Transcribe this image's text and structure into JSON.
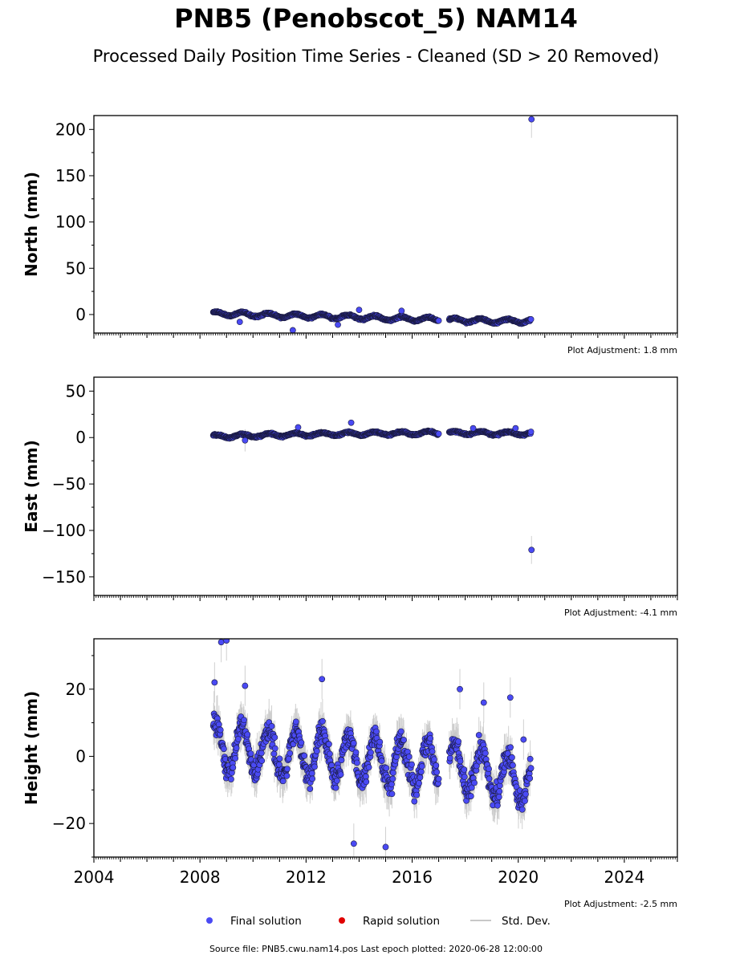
{
  "title": "PNB5 (Penobscot_5) NAM14",
  "subtitle": "Processed Daily Position Time Series - Cleaned (SD > 20 Removed)",
  "source": "Source file: PNB5.cwu.nam14.pos  Last epoch plotted: 2020-06-28 12:00:00",
  "colors": {
    "final": "#4a4af4",
    "rapid": "#e00000",
    "stddev": "#c8c8c8",
    "edge": "#1a1a40"
  },
  "legend": {
    "final": "Final solution",
    "rapid": "Rapid solution",
    "stddev": "Std. Dev."
  },
  "chart_data": [
    {
      "type": "scatter",
      "ylabel": "North (mm)",
      "xlim": [
        2004.0,
        2026.0
      ],
      "ylim": [
        -20,
        215
      ],
      "yticks": [
        0,
        50,
        100,
        150,
        200
      ],
      "ytick_labels": [
        "0",
        "50",
        "100",
        "150",
        "200"
      ],
      "adjustment": "Plot Adjustment: 1.8 mm",
      "x_ticks_labeled": false,
      "segments": [
        {
          "x": [
            2008.5,
            2008.9,
            2009.4,
            2009.9,
            2010.5,
            2011.0,
            2011.5,
            2012.0,
            2012.5,
            2013.0,
            2013.5,
            2014.0,
            2014.5,
            2015.0,
            2015.5,
            2016.0,
            2016.5,
            2017.0
          ],
          "y": [
            0.5,
            1.0,
            0.5,
            0.0,
            -0.5,
            -1.0,
            -1.5,
            -1.5,
            -2.0,
            -2.5,
            -2.5,
            -3.0,
            -3.5,
            -4.0,
            -4.5,
            -4.5,
            -5.0,
            -5.5
          ],
          "amplitude": 2.5,
          "noise": 1.0,
          "error": 2.5
        },
        {
          "x": [
            2017.4,
            2018.0,
            2018.5,
            2019.0,
            2019.5,
            2020.0,
            2020.48
          ],
          "y": [
            -6.0,
            -6.0,
            -6.5,
            -7.0,
            -7.0,
            -7.0,
            -7.0
          ],
          "amplitude": 2.5,
          "noise": 1.0,
          "error": 2.5
        }
      ],
      "outliers": [
        {
          "x": 2009.5,
          "y": -8,
          "err": 3
        },
        {
          "x": 2011.5,
          "y": -17,
          "err": 4
        },
        {
          "x": 2013.2,
          "y": -11,
          "err": 3
        },
        {
          "x": 2014.0,
          "y": 5,
          "err": 3
        },
        {
          "x": 2015.6,
          "y": 4,
          "err": 3
        },
        {
          "x": 2020.5,
          "y": 211,
          "err": 20
        }
      ]
    },
    {
      "type": "scatter",
      "ylabel": "East (mm)",
      "xlim": [
        2004.0,
        2026.0
      ],
      "ylim": [
        -170,
        65
      ],
      "yticks": [
        -150,
        -100,
        -50,
        0,
        50
      ],
      "ytick_labels": [
        "−150",
        "−100",
        "−50",
        "0",
        "50"
      ],
      "adjustment": "Plot Adjustment: -4.1 mm",
      "x_ticks_labeled": false,
      "segments": [
        {
          "x": [
            2008.5,
            2009.0,
            2009.5,
            2010.0,
            2010.5,
            2011.0,
            2011.5,
            2012.0,
            2012.5,
            2013.0,
            2013.5,
            2014.0,
            2014.5,
            2015.0,
            2015.5,
            2016.0,
            2016.5,
            2017.0
          ],
          "y": [
            1.5,
            1.5,
            2.0,
            2.0,
            2.5,
            3.0,
            3.0,
            3.5,
            3.5,
            4.0,
            4.0,
            4.0,
            4.5,
            4.5,
            4.5,
            4.5,
            5.0,
            5.0
          ],
          "amplitude": 2.0,
          "noise": 1.0,
          "error": 3.0
        },
        {
          "x": [
            2017.4,
            2018.0,
            2018.5,
            2019.0,
            2019.5,
            2020.0,
            2020.48
          ],
          "y": [
            5.0,
            5.0,
            5.0,
            4.5,
            4.5,
            4.5,
            4.0
          ],
          "amplitude": 2.0,
          "noise": 1.0,
          "error": 3.0
        }
      ],
      "outliers": [
        {
          "x": 2009.7,
          "y": -3,
          "err": 12
        },
        {
          "x": 2011.7,
          "y": 11,
          "err": 3
        },
        {
          "x": 2013.7,
          "y": 16,
          "err": 3
        },
        {
          "x": 2018.3,
          "y": 10,
          "err": 3
        },
        {
          "x": 2019.9,
          "y": 10,
          "err": 3
        },
        {
          "x": 2020.5,
          "y": -121,
          "err": 15
        }
      ]
    },
    {
      "type": "scatter",
      "ylabel": "Height (mm)",
      "xlim": [
        2004.0,
        2026.0
      ],
      "ylim": [
        -30,
        35
      ],
      "yticks": [
        -20,
        0,
        20
      ],
      "ytick_labels": [
        "−20",
        "0",
        "20"
      ],
      "adjustment": "Plot Adjustment: -2.5 mm",
      "x_ticks_labeled": true,
      "xticks": [
        2004,
        2008,
        2012,
        2016,
        2020,
        2024
      ],
      "xtick_labels": [
        "2004",
        "2008",
        "2012",
        "2016",
        "2020",
        "2024"
      ],
      "segments": [
        {
          "x": [
            2008.5,
            2009.0,
            2009.5,
            2010.0,
            2010.5,
            2011.0,
            2011.5,
            2012.0,
            2012.5,
            2013.0,
            2013.5,
            2014.0,
            2014.5,
            2015.0,
            2015.5,
            2016.0,
            2016.5,
            2017.0
          ],
          "y": [
            3.0,
            2.0,
            3.0,
            1.5,
            2.0,
            0.5,
            1.0,
            0.5,
            1.0,
            0.0,
            0.0,
            -0.5,
            -1.0,
            -1.0,
            -1.5,
            -2.0,
            -2.5,
            -2.5
          ],
          "amplitude": 8.0,
          "noise": 4.0,
          "error": 5.0
        },
        {
          "x": [
            2017.4,
            2018.0,
            2018.5,
            2019.0,
            2019.5,
            2020.0,
            2020.48
          ],
          "y": [
            -3.0,
            -4.0,
            -4.5,
            -5.0,
            -6.0,
            -7.0,
            -8.0
          ],
          "amplitude": 8.0,
          "noise": 4.0,
          "error": 5.0
        }
      ],
      "outliers": [
        {
          "x": 2008.55,
          "y": 22,
          "err": 6
        },
        {
          "x": 2008.8,
          "y": 34,
          "err": 6
        },
        {
          "x": 2009.0,
          "y": 34.5,
          "err": 6
        },
        {
          "x": 2009.7,
          "y": 21,
          "err": 6
        },
        {
          "x": 2012.6,
          "y": 23,
          "err": 6
        },
        {
          "x": 2013.8,
          "y": -26,
          "err": 6
        },
        {
          "x": 2015.0,
          "y": -27,
          "err": 6
        },
        {
          "x": 2017.8,
          "y": 20,
          "err": 6
        },
        {
          "x": 2018.7,
          "y": 16,
          "err": 6
        },
        {
          "x": 2019.7,
          "y": 17.5,
          "err": 6
        },
        {
          "x": 2020.2,
          "y": 5,
          "err": 6
        }
      ]
    }
  ]
}
